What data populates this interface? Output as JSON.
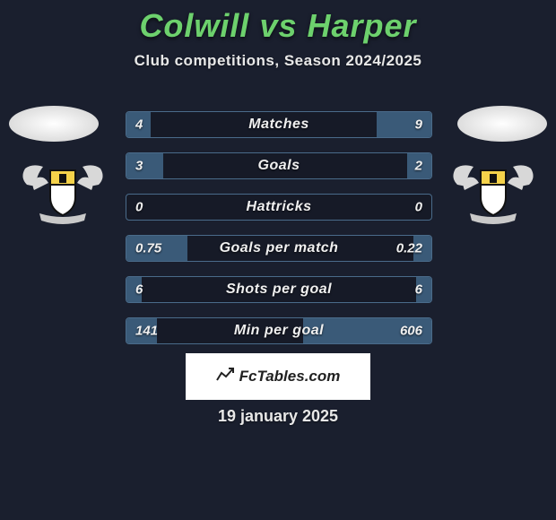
{
  "background_color": "#1a1f2e",
  "title": {
    "text": "Colwill vs Harper",
    "color": "#6dd16d",
    "fontsize": 36
  },
  "subtitle": {
    "text": "Club competitions, Season 2024/2025",
    "color": "#e8e8e8",
    "fontsize": 17
  },
  "bars": {
    "border_color": "#4a6b8a",
    "fill_color": "#3a5a78",
    "label_color": "#f0f0f0",
    "label_fontsize": 16,
    "value_fontsize": 15,
    "rows": [
      {
        "label": "Matches",
        "left": "4",
        "right": "9",
        "left_pct": 8,
        "right_pct": 18
      },
      {
        "label": "Goals",
        "left": "3",
        "right": "2",
        "left_pct": 12,
        "right_pct": 8
      },
      {
        "label": "Hattricks",
        "left": "0",
        "right": "0",
        "left_pct": 0,
        "right_pct": 0
      },
      {
        "label": "Goals per match",
        "left": "0.75",
        "right": "0.22",
        "left_pct": 20,
        "right_pct": 6
      },
      {
        "label": "Shots per goal",
        "left": "6",
        "right": "6",
        "left_pct": 5,
        "right_pct": 5
      },
      {
        "label": "Min per goal",
        "left": "141",
        "right": "606",
        "left_pct": 10,
        "right_pct": 42
      }
    ]
  },
  "brand": {
    "text": "FcTables.com",
    "fontsize": 17,
    "bg_color": "#ffffff",
    "text_color": "#222222"
  },
  "date": {
    "text": "19 january 2025",
    "fontsize": 18,
    "color": "#e8e8e8"
  },
  "crest": {
    "wing_color": "#d8d8d8",
    "shield_stroke": "#111111",
    "shield_fill_top": "#f5d24a",
    "shield_fill_bottom": "#ffffff",
    "banner_color": "#c9c9c9"
  }
}
